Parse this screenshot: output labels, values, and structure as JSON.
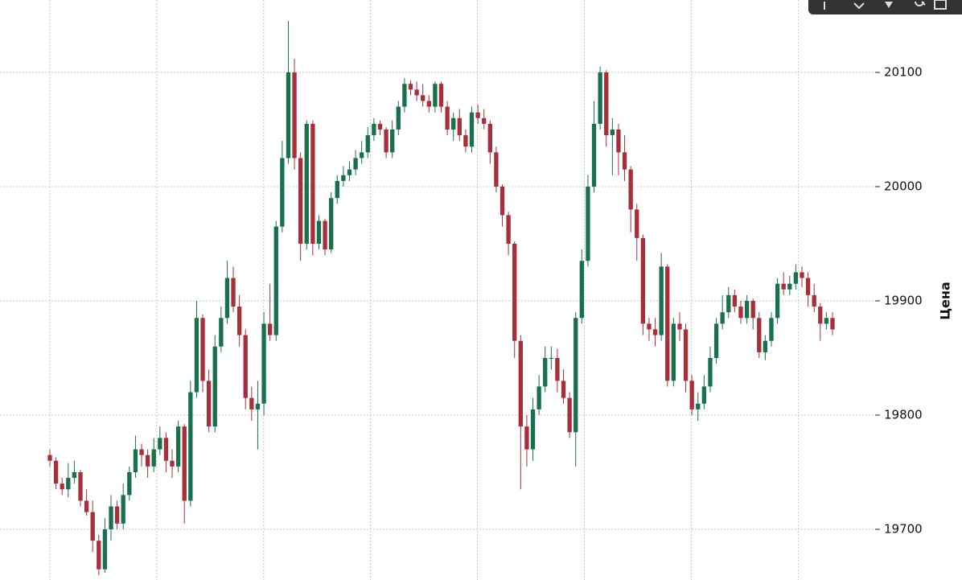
{
  "chart_data": {
    "type": "candlestick",
    "y_label": "Цена",
    "up_color": "#18704c",
    "down_color": "#a72f3a",
    "ylim": [
      19655.6,
      20163.4
    ],
    "yticks": [
      19700,
      19800,
      19900,
      20000,
      20100
    ],
    "grid": true,
    "open": [
      19765,
      19760,
      19740,
      19735,
      19745,
      19750,
      19725,
      19715,
      19690,
      19665,
      19700,
      19720,
      19705,
      19730,
      19750,
      19770,
      19765,
      19755,
      19770,
      19780,
      19760,
      19755,
      19790,
      19725,
      19820,
      19885,
      19830,
      19790,
      19860,
      19885,
      19920,
      19895,
      19870,
      19815,
      19805,
      19810,
      19880,
      19870,
      19965,
      20025,
      20100,
      20025,
      19950,
      20055,
      19950,
      19970,
      19945,
      19990,
      20005,
      20010,
      20015,
      20025,
      20030,
      20045,
      20055,
      20050,
      20030,
      20050,
      20070,
      20090,
      20085,
      20080,
      20075,
      20070,
      20090,
      20070,
      20050,
      20060,
      20045,
      20035,
      20065,
      20060,
      20055,
      20030,
      20000,
      19975,
      19950,
      19865,
      19790,
      19770,
      19805,
      19825,
      19850,
      19850,
      19830,
      19815,
      19785,
      19885,
      19935,
      20000,
      20055,
      20100,
      20045,
      20050,
      20030,
      20015,
      19980,
      19955,
      19880,
      19875,
      19870,
      19930,
      19830,
      19880,
      19875,
      19830,
      19805,
      19810,
      19825,
      19850,
      19880,
      19890,
      19905,
      19895,
      19885,
      19900,
      19885,
      19855,
      19865,
      19885,
      19915,
      19910,
      19915,
      19925,
      19920,
      19905,
      19895,
      19880,
      19885
    ],
    "high": [
      19770,
      19763,
      19745,
      19758,
      19760,
      19752,
      19735,
      19725,
      19695,
      19710,
      19730,
      19725,
      19740,
      19755,
      19782,
      19775,
      19770,
      19780,
      19790,
      19785,
      19770,
      19795,
      19792,
      19830,
      19900,
      19888,
      19840,
      19870,
      19895,
      19935,
      19930,
      19905,
      19875,
      19825,
      19830,
      19890,
      19915,
      19970,
      20040,
      20145,
      20112,
      20030,
      20058,
      20058,
      19975,
      19972,
      19995,
      20010,
      20018,
      20022,
      20032,
      20040,
      20052,
      20060,
      20058,
      20052,
      20058,
      20075,
      20095,
      20093,
      20092,
      20090,
      20080,
      20092,
      20092,
      20075,
      20065,
      20068,
      20050,
      20070,
      20072,
      20068,
      20058,
      20035,
      20002,
      19978,
      19952,
      19870,
      19800,
      19815,
      19835,
      19860,
      19860,
      19858,
      19840,
      19820,
      19890,
      19945,
      20010,
      20075,
      20105,
      20102,
      20060,
      20055,
      20045,
      20018,
      19985,
      19958,
      19885,
      19885,
      19942,
      19932,
      19885,
      19890,
      19880,
      19835,
      19820,
      19835,
      19860,
      19885,
      19905,
      19912,
      19910,
      19900,
      19905,
      19902,
      19890,
      19870,
      19890,
      19920,
      19925,
      19922,
      19932,
      19930,
      19925,
      19915,
      19898,
      19890,
      19890
    ],
    "low": [
      19755,
      19735,
      19730,
      19728,
      19740,
      19720,
      19712,
      19680,
      19660,
      19662,
      19690,
      19700,
      19700,
      19725,
      19745,
      19755,
      19745,
      19750,
      19765,
      19750,
      19745,
      19750,
      19705,
      19720,
      19815,
      19820,
      19785,
      19785,
      19855,
      19880,
      19890,
      19860,
      19805,
      19795,
      19770,
      19800,
      19865,
      19865,
      19960,
      20020,
      20015,
      19935,
      19945,
      19940,
      19945,
      19940,
      19942,
      19985,
      20000,
      20005,
      20010,
      20020,
      20025,
      20040,
      20045,
      20025,
      20025,
      20045,
      20065,
      20080,
      20075,
      20070,
      20065,
      20065,
      20065,
      20045,
      20040,
      20040,
      20030,
      20030,
      20055,
      20050,
      20020,
      19995,
      19965,
      19940,
      19850,
      19735,
      19755,
      19760,
      19800,
      19820,
      19840,
      19820,
      19810,
      19780,
      19755,
      19880,
      19930,
      19995,
      20050,
      20035,
      20010,
      20010,
      20005,
      19960,
      19935,
      19870,
      19865,
      19860,
      19865,
      19825,
      19825,
      19865,
      19820,
      19800,
      19795,
      19805,
      19820,
      19845,
      19875,
      19885,
      19890,
      19880,
      19880,
      19875,
      19850,
      19848,
      19860,
      19880,
      19905,
      19905,
      19910,
      19912,
      19895,
      19890,
      19865,
      19875,
      19870
    ],
    "close": [
      19760,
      19740,
      19735,
      19745,
      19750,
      19725,
      19715,
      19690,
      19665,
      19700,
      19720,
      19705,
      19730,
      19750,
      19770,
      19765,
      19755,
      19770,
      19780,
      19760,
      19755,
      19790,
      19725,
      19820,
      19885,
      19830,
      19790,
      19860,
      19885,
      19920,
      19895,
      19870,
      19815,
      19805,
      19810,
      19880,
      19870,
      19965,
      20025,
      20100,
      20025,
      19950,
      20055,
      19950,
      19970,
      19945,
      19990,
      20005,
      20010,
      20015,
      20025,
      20030,
      20045,
      20055,
      20050,
      20030,
      20050,
      20070,
      20090,
      20085,
      20080,
      20075,
      20070,
      20090,
      20070,
      20050,
      20060,
      20045,
      20035,
      20065,
      20060,
      20055,
      20030,
      20000,
      19975,
      19950,
      19865,
      19790,
      19770,
      19805,
      19825,
      19850,
      19850,
      19830,
      19815,
      19785,
      19885,
      19935,
      20000,
      20055,
      20100,
      20045,
      20050,
      20030,
      20015,
      19980,
      19955,
      19880,
      19875,
      19870,
      19930,
      19830,
      19880,
      19875,
      19830,
      19805,
      19810,
      19825,
      19850,
      19880,
      19890,
      19905,
      19895,
      19885,
      19900,
      19885,
      19855,
      19865,
      19885,
      19915,
      19910,
      19915,
      19925,
      19920,
      19905,
      19895,
      19880,
      19885,
      19875
    ]
  }
}
